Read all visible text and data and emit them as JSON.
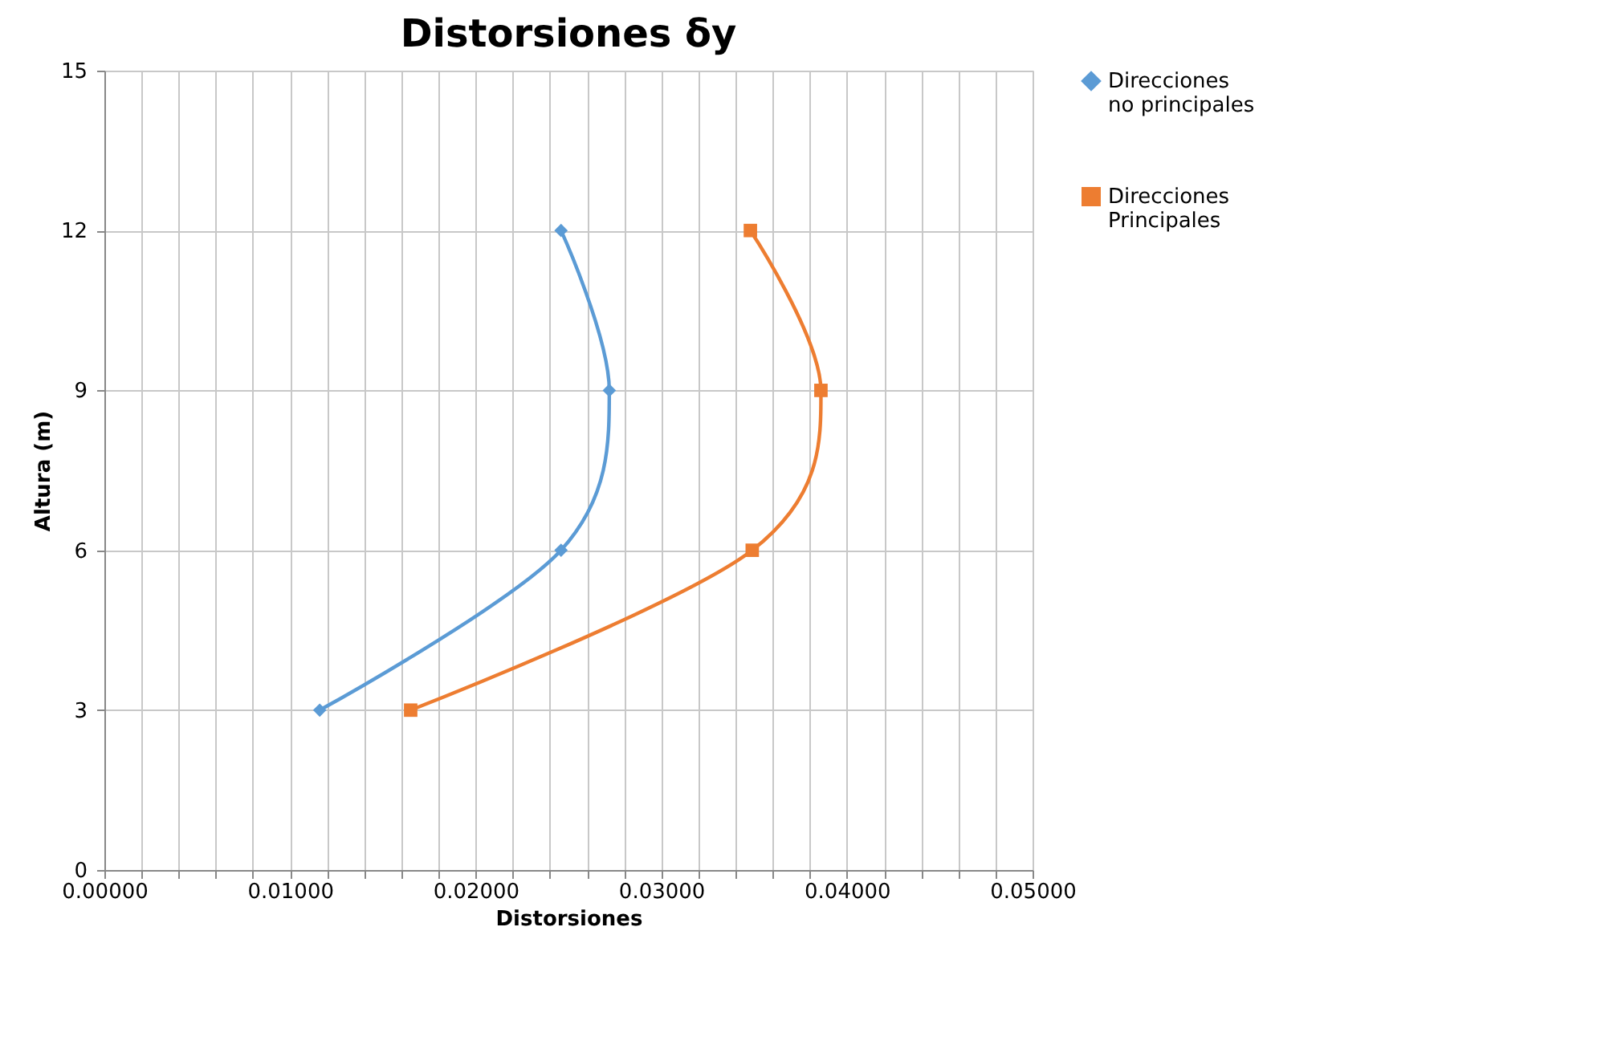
{
  "chart_data": {
    "type": "line",
    "title": "Distorsiones δy",
    "xlabel": "Distorsiones",
    "ylabel": "Altura (m)",
    "x": [
      3,
      6,
      9,
      12
    ],
    "series": [
      {
        "name": "Direcciones no principales",
        "color": "#5b9bd5",
        "marker": "diamond",
        "values": [
          0.0116,
          0.0246,
          0.0272,
          0.0246
        ]
      },
      {
        "name": "Direcciones Principales",
        "color": "#ed7d31",
        "marker": "square",
        "values": [
          0.0165,
          0.0349,
          0.0386,
          0.0348
        ]
      }
    ],
    "orientation": "horizontal",
    "xlim": [
      0,
      0.05
    ],
    "xticks": [
      {
        "value": 0,
        "label": "0.00000"
      },
      {
        "value": 0.002,
        "label": null
      },
      {
        "value": 0.004,
        "label": null
      },
      {
        "value": 0.006,
        "label": null
      },
      {
        "value": 0.008,
        "label": null
      },
      {
        "value": 0.01,
        "label": "0.01000"
      },
      {
        "value": 0.012,
        "label": null
      },
      {
        "value": 0.014,
        "label": null
      },
      {
        "value": 0.016,
        "label": null
      },
      {
        "value": 0.018,
        "label": null
      },
      {
        "value": 0.02,
        "label": "0.02000"
      },
      {
        "value": 0.022,
        "label": null
      },
      {
        "value": 0.024,
        "label": null
      },
      {
        "value": 0.026,
        "label": null
      },
      {
        "value": 0.028,
        "label": null
      },
      {
        "value": 0.03,
        "label": "0.03000"
      },
      {
        "value": 0.032,
        "label": null
      },
      {
        "value": 0.034,
        "label": null
      },
      {
        "value": 0.036,
        "label": null
      },
      {
        "value": 0.038,
        "label": null
      },
      {
        "value": 0.04,
        "label": "0.04000"
      },
      {
        "value": 0.042,
        "label": null
      },
      {
        "value": 0.044,
        "label": null
      },
      {
        "value": 0.046,
        "label": null
      },
      {
        "value": 0.048,
        "label": null
      },
      {
        "value": 0.05,
        "label": "0.05000"
      }
    ],
    "ylim": [
      0,
      15
    ],
    "yticks": [
      0,
      3,
      6,
      9,
      12,
      15
    ],
    "grid": true,
    "legend": "right",
    "line_style": "solid"
  }
}
